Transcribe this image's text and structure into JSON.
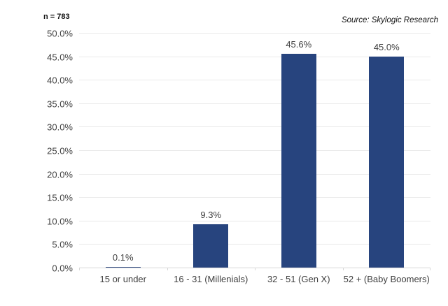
{
  "header": {
    "n_label": "n = 783",
    "source": "Source: Skylogic Research"
  },
  "chart_data": {
    "type": "bar",
    "title": "",
    "xlabel": "",
    "ylabel": "",
    "categories": [
      "15 or under",
      "16 - 31 (Millenials)",
      "32 - 51 (Gen X)",
      "52 + (Baby Boomers)"
    ],
    "values": [
      0.1,
      9.3,
      45.6,
      45.0
    ],
    "data_labels": [
      "0.1%",
      "9.3%",
      "45.6%",
      "45.0%"
    ],
    "ylim": [
      0,
      50
    ],
    "ytick_step": 5,
    "ytick_labels": [
      "0.0%",
      "5.0%",
      "10.0%",
      "15.0%",
      "20.0%",
      "25.0%",
      "30.0%",
      "35.0%",
      "40.0%",
      "45.0%",
      "50.0%"
    ],
    "grid": true,
    "legend": false,
    "colors": {
      "bar": "#27447e",
      "gridline": "#e9e9e9",
      "axis_line": "#d6d6d6",
      "label_text": "#3f3f3f"
    }
  }
}
